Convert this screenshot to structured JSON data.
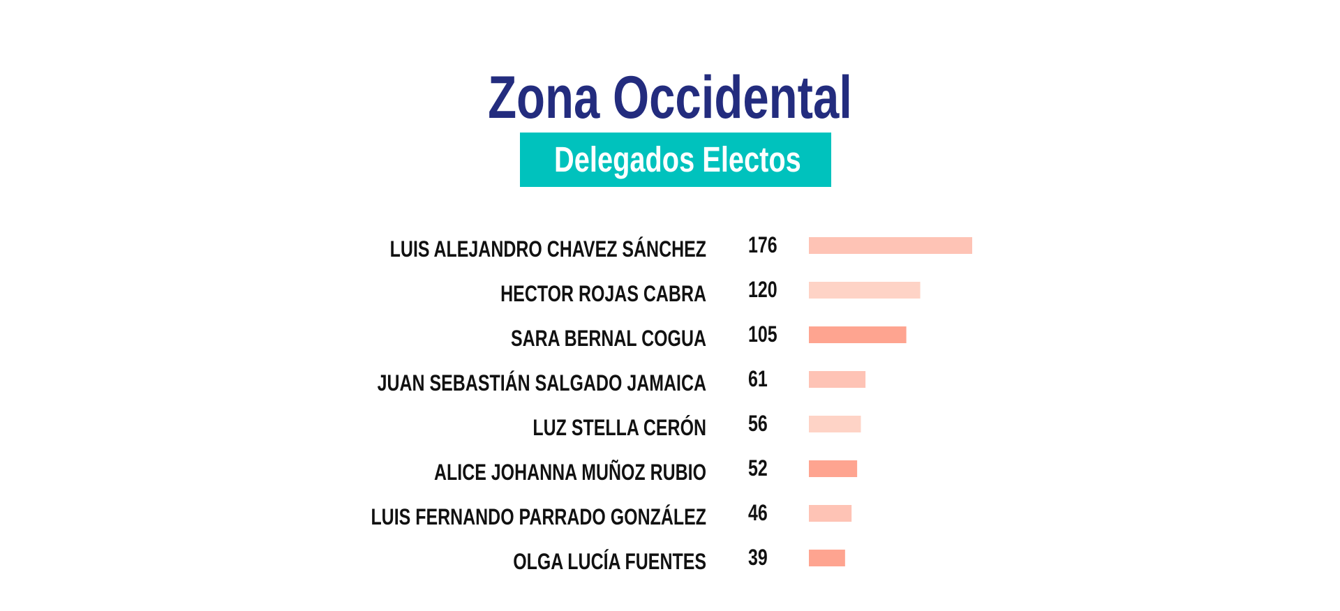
{
  "chart_data": {
    "type": "bar",
    "orientation": "horizontal",
    "title": "Zona Occidental",
    "subtitle": "Delegados Electos",
    "categories": [
      "LUIS ALEJANDRO CHAVEZ SÁNCHEZ",
      "HECTOR ROJAS CABRA",
      "SARA BERNAL COGUA",
      "JUAN SEBASTIÁN SALGADO JAMAICA",
      "LUZ STELLA CERÓN",
      "ALICE JOHANNA MUÑOZ RUBIO",
      "LUIS FERNANDO PARRADO GONZÁLEZ",
      "OLGA LUCÍA FUENTES"
    ],
    "values": [
      176,
      120,
      105,
      61,
      56,
      52,
      46,
      39
    ],
    "bar_colors": [
      "#fec3b5",
      "#fed3c6",
      "#fea490",
      "#fec3b5",
      "#fed3c6",
      "#fea490",
      "#fec3b5",
      "#fea490"
    ],
    "grid": false,
    "legend": "none"
  },
  "colors": {
    "title": "#232c7e",
    "subtitle_background": "#00c2bd",
    "subtitle_text": "#ffffff",
    "label_text": "#111111"
  }
}
